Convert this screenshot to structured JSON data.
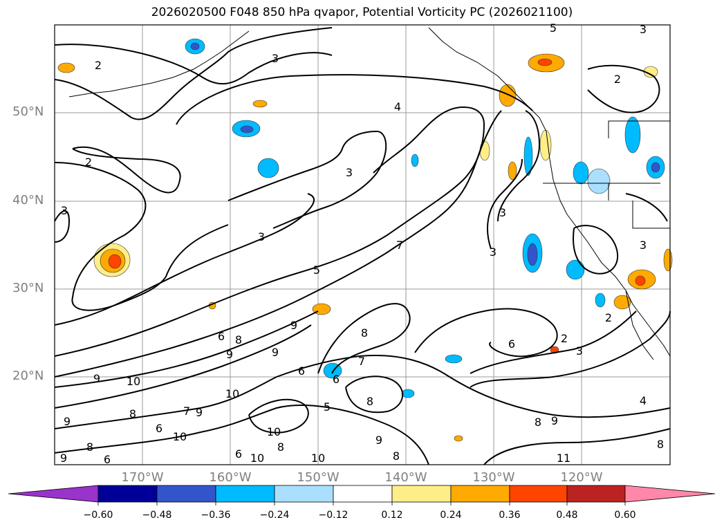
{
  "title": "2026020500 F048 850 hPa qvapor, Potential Vorticity PC (2026021100)",
  "lat_labels": [
    "50°N",
    "40°N",
    "30°N",
    "20°N"
  ],
  "lon_labels": [
    "170°W",
    "160°W",
    "150°W",
    "140°W",
    "130°W",
    "120°W"
  ],
  "colorbar": {
    "ticks": [
      "−0.60",
      "−0.48",
      "−0.36",
      "−0.24",
      "−0.12",
      "0.12",
      "0.24",
      "0.36",
      "0.48",
      "0.60"
    ],
    "colors": [
      "#9933cc",
      "#000099",
      "#3355cc",
      "#00bbff",
      "#aadfff",
      "#ffffff",
      "#ffee88",
      "#ffaa00",
      "#ff4400",
      "#bb2222",
      "#ff88aa"
    ]
  },
  "contour_labels": [
    "2",
    "3",
    "4",
    "5",
    "6",
    "7",
    "8",
    "9",
    "10",
    "11"
  ]
}
